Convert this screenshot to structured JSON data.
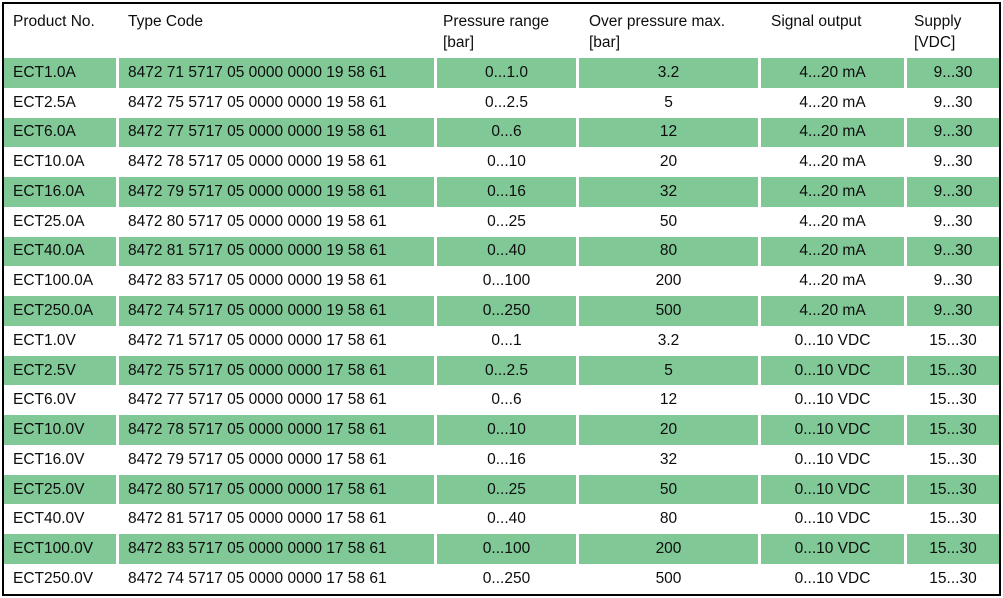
{
  "colors": {
    "row_highlight_green": "#80c896",
    "row_plain_white": "#ffffff",
    "frame_border": "#000000",
    "text": "#0d0d0d"
  },
  "table": {
    "headers": [
      {
        "label": "Product No.",
        "unit": ""
      },
      {
        "label": "Type Code",
        "unit": ""
      },
      {
        "label": "Pressure range",
        "unit": "[bar]"
      },
      {
        "label": "Over pressure max.",
        "unit": "[bar]"
      },
      {
        "label": "Signal output",
        "unit": ""
      },
      {
        "label": "Supply",
        "unit": "[VDC]"
      }
    ],
    "rows": [
      {
        "product_no": "ECT1.0A",
        "type_code": "8472 71 5717 05 0000 0000 19 58 61",
        "pressure_range": "0...1.0",
        "over_pressure_max": "3.2",
        "signal_output": "4...20 mA",
        "supply": "9...30"
      },
      {
        "product_no": "ECT2.5A",
        "type_code": "8472 75 5717 05 0000 0000 19 58 61",
        "pressure_range": "0...2.5",
        "over_pressure_max": "5",
        "signal_output": "4...20 mA",
        "supply": "9...30"
      },
      {
        "product_no": "ECT6.0A",
        "type_code": "8472 77 5717 05 0000 0000 19 58 61",
        "pressure_range": "0...6",
        "over_pressure_max": "12",
        "signal_output": "4...20 mA",
        "supply": "9...30"
      },
      {
        "product_no": "ECT10.0A",
        "type_code": "8472 78 5717 05 0000 0000 19 58 61",
        "pressure_range": "0...10",
        "over_pressure_max": "20",
        "signal_output": "4...20 mA",
        "supply": "9...30"
      },
      {
        "product_no": "ECT16.0A",
        "type_code": "8472 79 5717 05 0000 0000 19 58 61",
        "pressure_range": "0...16",
        "over_pressure_max": "32",
        "signal_output": "4...20 mA",
        "supply": "9...30"
      },
      {
        "product_no": "ECT25.0A",
        "type_code": "8472 80 5717 05 0000 0000 19 58 61",
        "pressure_range": "0...25",
        "over_pressure_max": "50",
        "signal_output": "4...20 mA",
        "supply": "9...30"
      },
      {
        "product_no": "ECT40.0A",
        "type_code": "8472 81 5717 05 0000 0000 19 58 61",
        "pressure_range": "0...40",
        "over_pressure_max": "80",
        "signal_output": "4...20 mA",
        "supply": "9...30"
      },
      {
        "product_no": "ECT100.0A",
        "type_code": "8472 83 5717 05 0000 0000 19 58 61",
        "pressure_range": "0...100",
        "over_pressure_max": "200",
        "signal_output": "4...20 mA",
        "supply": "9...30"
      },
      {
        "product_no": "ECT250.0A",
        "type_code": "8472 74 5717 05 0000 0000 19 58 61",
        "pressure_range": "0...250",
        "over_pressure_max": "500",
        "signal_output": "4...20 mA",
        "supply": "9...30"
      },
      {
        "product_no": "ECT1.0V",
        "type_code": "8472 71 5717 05 0000 0000 17 58 61",
        "pressure_range": "0...1",
        "over_pressure_max": "3.2",
        "signal_output": "0...10 VDC",
        "supply": "15...30"
      },
      {
        "product_no": "ECT2.5V",
        "type_code": "8472 75 5717 05 0000 0000 17 58 61",
        "pressure_range": "0...2.5",
        "over_pressure_max": "5",
        "signal_output": "0...10 VDC",
        "supply": "15...30"
      },
      {
        "product_no": "ECT6.0V",
        "type_code": "8472 77 5717 05 0000 0000 17 58 61",
        "pressure_range": "0...6",
        "over_pressure_max": "12",
        "signal_output": "0...10 VDC",
        "supply": "15...30"
      },
      {
        "product_no": "ECT10.0V",
        "type_code": "8472 78 5717 05 0000 0000 17 58 61",
        "pressure_range": "0...10",
        "over_pressure_max": "20",
        "signal_output": "0...10 VDC",
        "supply": "15...30"
      },
      {
        "product_no": "ECT16.0V",
        "type_code": "8472 79 5717 05 0000 0000 17 58 61",
        "pressure_range": "0...16",
        "over_pressure_max": "32",
        "signal_output": "0...10 VDC",
        "supply": "15...30"
      },
      {
        "product_no": "ECT25.0V",
        "type_code": "8472 80 5717 05 0000 0000 17 58 61",
        "pressure_range": "0...25",
        "over_pressure_max": "50",
        "signal_output": "0...10 VDC",
        "supply": "15...30"
      },
      {
        "product_no": "ECT40.0V",
        "type_code": "8472 81 5717 05 0000 0000 17 58 61",
        "pressure_range": "0...40",
        "over_pressure_max": "80",
        "signal_output": "0...10 VDC",
        "supply": "15...30"
      },
      {
        "product_no": "ECT100.0V",
        "type_code": "8472 83 5717 05 0000 0000 17 58 61",
        "pressure_range": "0...100",
        "over_pressure_max": "200",
        "signal_output": "0...10 VDC",
        "supply": "15...30"
      },
      {
        "product_no": "ECT250.0V",
        "type_code": "8472 74 5717 05 0000 0000 17 58 61",
        "pressure_range": "0...250",
        "over_pressure_max": "500",
        "signal_output": "0...10 VDC",
        "supply": "15...30"
      }
    ]
  }
}
